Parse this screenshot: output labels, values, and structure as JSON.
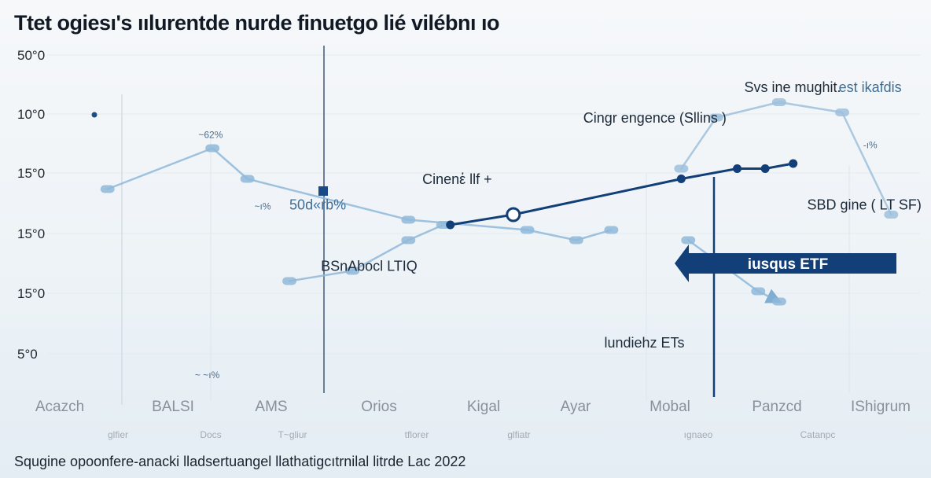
{
  "title": "Ttet ogiesı's ıılurentde nurde finuetgo lié vilébnı ıo",
  "footnote": "Squgine opoonfere-anacki lladsertuangel llathatigcıtrnilal litrde Lac 2022",
  "chart_data": {
    "type": "line",
    "y_tick_labels": [
      "50°0",
      "10°0",
      "15°0",
      "15°0",
      "15°0",
      "5°0"
    ],
    "x_tick_labels": [
      "Acazch",
      "BALSI",
      "AMS",
      "Orios",
      "Kigal",
      "Ayar",
      "Mobal",
      "Panzcd",
      "IShigrum"
    ],
    "x_sub_labels": [
      "glfier",
      "Docs",
      "T~gliur",
      "tflorer",
      "glfiatr",
      "ıgnaeo",
      "Catanpc"
    ],
    "series": [
      {
        "style": "pale",
        "color": "#8fb9d9",
        "x": [
          0.0,
          1.5,
          2.0,
          4.3,
          6.0,
          6.7,
          7.2
        ],
        "y": [
          3.3,
          4.1,
          3.5,
          2.7,
          2.5,
          2.3,
          2.5
        ]
      },
      {
        "style": "pale",
        "color": "#8fb9d9",
        "x": [
          2.6,
          3.5,
          4.3,
          4.8
        ],
        "y": [
          1.5,
          1.7,
          2.3,
          2.6
        ]
      },
      {
        "style": "main",
        "color": "#123f78",
        "x": [
          4.9,
          5.8,
          8.2,
          9.0,
          9.4,
          9.8
        ],
        "y": [
          2.6,
          2.8,
          3.5,
          3.7,
          3.7,
          3.8
        ]
      },
      {
        "style": "pale",
        "color": "#9dc0dc",
        "x": [
          8.2,
          8.7,
          9.6,
          10.5,
          11.2
        ],
        "y": [
          3.7,
          4.7,
          5.0,
          4.8,
          2.8
        ]
      },
      {
        "style": "pale",
        "color": "#8fb9d9",
        "x": [
          8.3,
          8.8,
          9.3,
          9.6
        ],
        "y": [
          2.3,
          1.8,
          1.3,
          1.1
        ]
      }
    ],
    "annotations": [
      {
        "text": "Svs ine mughit.",
        "x": 9.1,
        "y": 5.2
      },
      {
        "text": "est ikafdis",
        "x": 10.45,
        "y": 5.2,
        "pale": true
      },
      {
        "text": "Cingr engence (Sllins )",
        "x": 6.8,
        "y": 4.6
      },
      {
        "text": "Cinenἑ llf +",
        "x": 4.5,
        "y": 3.4
      },
      {
        "text": "50d«rb%",
        "x": 2.6,
        "y": 2.9,
        "pale": true
      },
      {
        "text": "SBD gine ( LT SF)",
        "x": 10.0,
        "y": 2.9
      },
      {
        "text": "BSnAbocl LTIQ",
        "x": 3.05,
        "y": 1.7
      },
      {
        "text": "lundiehz ETs",
        "x": 7.1,
        "y": 0.2
      },
      {
        "text": "~62%",
        "x": 1.3,
        "y": 4.3,
        "small": true
      },
      {
        "text": "~ı%",
        "x": 2.1,
        "y": 2.9,
        "small": true
      },
      {
        "text": "-ı%",
        "x": 10.8,
        "y": 4.1,
        "small": true
      },
      {
        "text": "~ ~ı%",
        "x": 1.25,
        "y": -0.4,
        "small": true
      }
    ],
    "banner_label": "iusqus ETF",
    "ylim": [
      -1,
      6
    ],
    "xlim": [
      -0.3,
      11.5
    ]
  }
}
